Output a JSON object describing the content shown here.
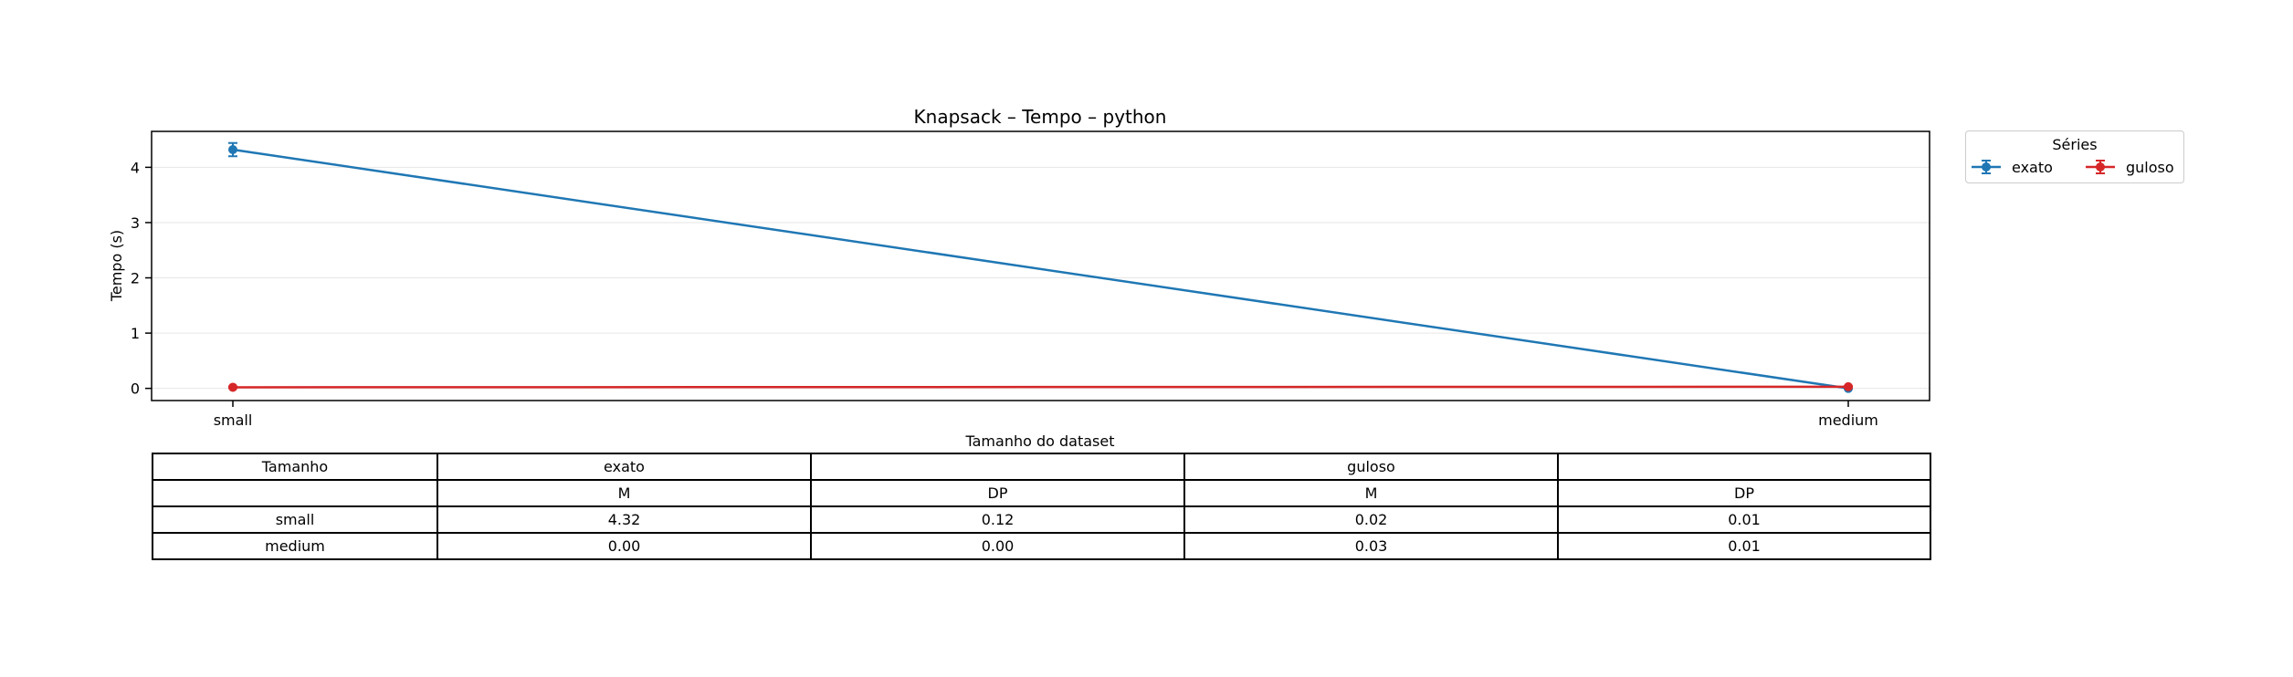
{
  "chart_data": {
    "type": "line",
    "title": "Knapsack – Tempo – python",
    "xlabel": "Tamanho do dataset",
    "ylabel": "Tempo (s)",
    "categories": [
      "small",
      "medium"
    ],
    "ylim": [
      -0.22,
      4.65
    ],
    "yticks": [
      0,
      1,
      2,
      3,
      4
    ],
    "grid": "horizontal",
    "series": [
      {
        "name": "exato",
        "color": "#1f77b4",
        "values": [
          4.32,
          0.0
        ],
        "errors": [
          0.12,
          0.0
        ]
      },
      {
        "name": "guloso",
        "color": "#d62728",
        "values": [
          0.02,
          0.03
        ],
        "errors": [
          0.01,
          0.01
        ]
      }
    ],
    "legend": {
      "title": "Séries",
      "placement": "outside right, top"
    }
  },
  "table": {
    "header1": [
      "Tamanho",
      "exato",
      "",
      "guloso",
      ""
    ],
    "header2": [
      "",
      "M",
      "DP",
      "M",
      "DP"
    ],
    "rows": [
      [
        "small",
        "4.32",
        "0.12",
        "0.02",
        "0.01"
      ],
      [
        "medium",
        "0.00",
        "0.00",
        "0.03",
        "0.01"
      ]
    ]
  }
}
